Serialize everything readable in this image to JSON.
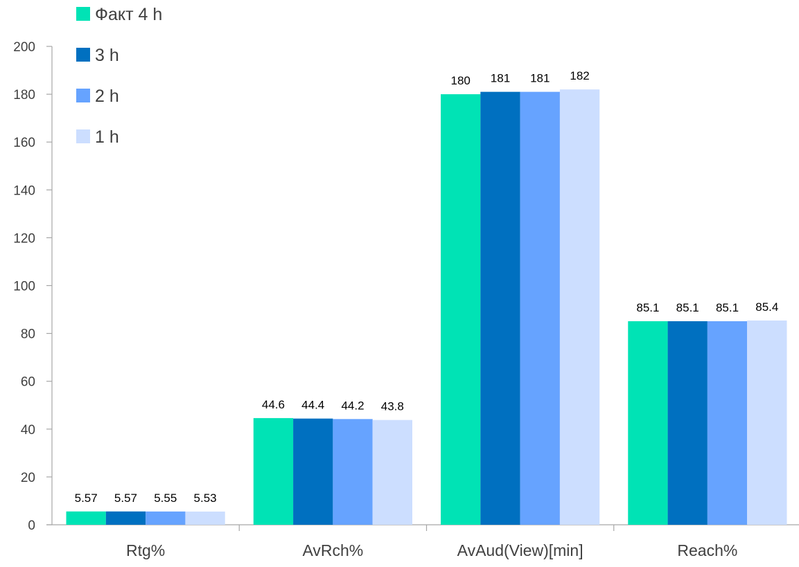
{
  "chart_data": {
    "type": "bar",
    "title": "",
    "xlabel": "",
    "ylabel": "",
    "categories": [
      "Rtg%",
      "AvRch%",
      "AvAud(View)[min]",
      "Reach%"
    ],
    "series": [
      {
        "name": "Факт 4 h",
        "color": "#00E3B5",
        "values": [
          5.57,
          44.6,
          180,
          85.1
        ]
      },
      {
        "name": "3 h",
        "color": "#0070C0",
        "values": [
          5.57,
          44.4,
          181,
          85.1
        ]
      },
      {
        "name": "2 h",
        "color": "#66A3FF",
        "values": [
          5.55,
          44.2,
          181,
          85.1
        ]
      },
      {
        "name": "1 h",
        "color": "#CCDEFF",
        "values": [
          5.53,
          43.8,
          182,
          85.4
        ]
      }
    ],
    "data_labels": [
      [
        "5.57",
        "44.6",
        "180",
        "85.1"
      ],
      [
        "5.57",
        "44.4",
        "181",
        "85.1"
      ],
      [
        "5.55",
        "44.2",
        "181",
        "85.1"
      ],
      [
        "5.53",
        "43.8",
        "182",
        "85.4"
      ]
    ],
    "ylim": [
      0,
      200
    ],
    "yticks": [
      0,
      20,
      40,
      60,
      80,
      100,
      120,
      140,
      160,
      180,
      200
    ],
    "ytick_labels": [
      "0",
      "20",
      "40",
      "60",
      "80",
      "100",
      "120",
      "140",
      "160",
      "180",
      "200"
    ],
    "grid": false,
    "legend_position": "top-left",
    "axis_color": "#A6A6A6"
  }
}
